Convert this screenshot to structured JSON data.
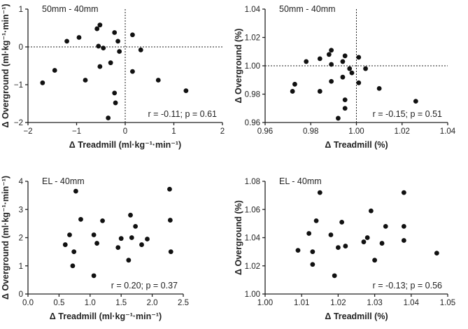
{
  "chart_data": [
    {
      "type": "scatter",
      "title": "50mm - 40mm",
      "xlabel": "Δ Treadmill (ml·kg⁻¹·min⁻¹)",
      "ylabel": "Δ Overground (ml·kg⁻¹·min⁻¹)",
      "xlim": [
        -2,
        2
      ],
      "ylim": [
        -2,
        1
      ],
      "xticks": [
        -2,
        -1,
        0,
        1,
        2
      ],
      "yticks": [
        -2,
        -1,
        0,
        1
      ],
      "xticklabels": [
        "−2",
        "−1",
        "0",
        "1",
        "2"
      ],
      "yticklabels": [
        "−2",
        "−1",
        "0",
        "1"
      ],
      "ref_x": 0,
      "ref_y": 0,
      "annotation": "r = -0.11; p = 0.61",
      "points": [
        [
          -1.7,
          -0.95
        ],
        [
          -1.45,
          -0.62
        ],
        [
          -1.2,
          0.15
        ],
        [
          -0.95,
          0.25
        ],
        [
          -0.82,
          -0.88
        ],
        [
          -0.58,
          0.48
        ],
        [
          -0.52,
          0.58
        ],
        [
          -0.55,
          0.02
        ],
        [
          -0.52,
          -0.52
        ],
        [
          -0.45,
          -0.03
        ],
        [
          -0.35,
          -1.88
        ],
        [
          -0.3,
          -0.42
        ],
        [
          -0.22,
          0.38
        ],
        [
          -0.22,
          -1.22
        ],
        [
          -0.2,
          -1.48
        ],
        [
          -0.15,
          0.15
        ],
        [
          -0.12,
          -0.12
        ],
        [
          0.15,
          0.32
        ],
        [
          0.15,
          -0.65
        ],
        [
          0.32,
          -0.08
        ],
        [
          0.68,
          -0.88
        ],
        [
          1.25,
          -1.16
        ]
      ]
    },
    {
      "type": "scatter",
      "title": "50mm - 40mm",
      "xlabel": "Δ Treadmill (%)",
      "ylabel": "Δ Overground (%)",
      "xlim": [
        0.96,
        1.04
      ],
      "ylim": [
        0.96,
        1.04
      ],
      "xticks": [
        0.96,
        0.98,
        1.0,
        1.02,
        1.04
      ],
      "yticks": [
        0.96,
        0.98,
        1.0,
        1.02,
        1.04
      ],
      "xticklabels": [
        "0.96",
        "0.98",
        "1.00",
        "1.02",
        "1.04"
      ],
      "yticklabels": [
        "0.96",
        "0.98",
        "1.00",
        "1.02",
        "1.04"
      ],
      "ref_x": 1.0,
      "ref_y": 1.0,
      "annotation": "r = -0.15; p = 0.51",
      "points": [
        [
          0.972,
          0.982
        ],
        [
          0.973,
          0.987
        ],
        [
          0.978,
          1.003
        ],
        [
          0.984,
          0.982
        ],
        [
          0.984,
          1.005
        ],
        [
          0.988,
          1.008
        ],
        [
          0.989,
          1.011
        ],
        [
          0.989,
          1.001
        ],
        [
          0.989,
          0.989
        ],
        [
          0.992,
          0.963
        ],
        [
          0.994,
          1.003
        ],
        [
          0.994,
          0.992
        ],
        [
          0.995,
          1.007
        ],
        [
          0.995,
          0.976
        ],
        [
          0.995,
          0.97
        ],
        [
          0.997,
          0.998
        ],
        [
          0.998,
          0.995
        ],
        [
          1.001,
          0.988
        ],
        [
          1.001,
          1.006
        ],
        [
          1.004,
          0.998
        ],
        [
          1.01,
          0.984
        ],
        [
          1.026,
          0.975
        ]
      ]
    },
    {
      "type": "scatter",
      "title": "EL - 40mm",
      "xlabel": "Δ Treadmill (ml·kg⁻¹·min⁻¹)",
      "ylabel": "Δ Overground (ml·kg⁻¹·min⁻¹)",
      "xlim": [
        0,
        2.5
      ],
      "ylim": [
        0,
        4
      ],
      "xticks": [
        0.0,
        0.5,
        1.0,
        1.5,
        2.0,
        2.5
      ],
      "yticks": [
        0,
        1,
        2,
        3,
        4
      ],
      "xticklabels": [
        "0.0",
        "0.5",
        "1.0",
        "1.5",
        "2.0",
        "2.5"
      ],
      "yticklabels": [
        "0",
        "1",
        "2",
        "3",
        "4"
      ],
      "annotation": "r = 0.20; p = 0.37",
      "points": [
        [
          0.6,
          1.75
        ],
        [
          0.67,
          2.1
        ],
        [
          0.72,
          1.0
        ],
        [
          0.74,
          1.5
        ],
        [
          0.77,
          3.65
        ],
        [
          0.85,
          2.65
        ],
        [
          1.06,
          2.1
        ],
        [
          1.06,
          0.65
        ],
        [
          1.11,
          1.8
        ],
        [
          1.2,
          2.6
        ],
        [
          1.45,
          1.65
        ],
        [
          1.5,
          1.97
        ],
        [
          1.62,
          1.2
        ],
        [
          1.65,
          2.8
        ],
        [
          1.67,
          2.0
        ],
        [
          1.73,
          2.4
        ],
        [
          1.83,
          1.75
        ],
        [
          1.92,
          1.95
        ],
        [
          2.28,
          3.72
        ],
        [
          2.29,
          2.62
        ],
        [
          2.3,
          1.5
        ]
      ]
    },
    {
      "type": "scatter",
      "title": "EL - 40mm",
      "xlabel": "Δ Treadmill (%)",
      "ylabel": "Δ Overground (%)",
      "xlim": [
        1.0,
        1.05
      ],
      "ylim": [
        1.0,
        1.08
      ],
      "xticks": [
        1.0,
        1.01,
        1.02,
        1.03,
        1.04,
        1.05
      ],
      "yticks": [
        1.0,
        1.02,
        1.04,
        1.06,
        1.08
      ],
      "xticklabels": [
        "1.00",
        "1.01",
        "1.02",
        "1.03",
        "1.04",
        "1.05"
      ],
      "yticklabels": [
        "1.00",
        "1.02",
        "1.04",
        "1.06",
        "1.08"
      ],
      "annotation": "r = -0.13; p = 0.56",
      "points": [
        [
          1.009,
          1.031
        ],
        [
          1.012,
          1.043
        ],
        [
          1.013,
          1.021
        ],
        [
          1.013,
          1.03
        ],
        [
          1.014,
          1.052
        ],
        [
          1.015,
          1.072
        ],
        [
          1.018,
          1.042
        ],
        [
          1.019,
          1.013
        ],
        [
          1.02,
          1.033
        ],
        [
          1.021,
          1.051
        ],
        [
          1.022,
          1.034
        ],
        [
          1.027,
          1.037
        ],
        [
          1.028,
          1.04
        ],
        [
          1.029,
          1.059
        ],
        [
          1.03,
          1.024
        ],
        [
          1.032,
          1.036
        ],
        [
          1.033,
          1.048
        ],
        [
          1.038,
          1.072
        ],
        [
          1.038,
          1.048
        ],
        [
          1.038,
          1.038
        ],
        [
          1.047,
          1.029
        ]
      ]
    }
  ]
}
